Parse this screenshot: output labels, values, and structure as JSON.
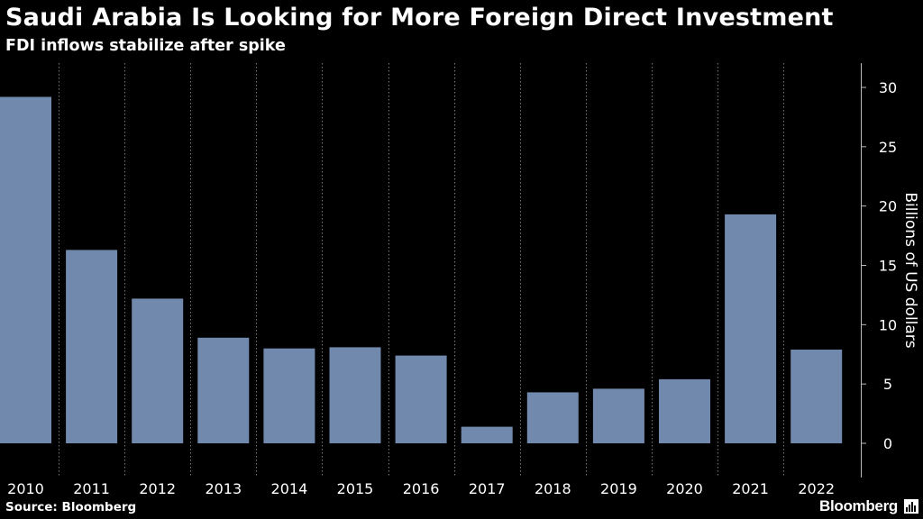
{
  "title": "Saudi Arabia Is Looking for More Foreign Direct Investment",
  "subtitle": "FDI inflows stabilize after spike",
  "source": "Source: Bloomberg",
  "brand": "Bloomberg",
  "colors": {
    "background": "#000000",
    "bar": "#7189ad",
    "text": "#ffffff",
    "grid": "#777777"
  },
  "chart_data": {
    "type": "bar",
    "title": "Saudi Arabia Is Looking for More Foreign Direct Investment",
    "subtitle": "FDI inflows stabilize after spike",
    "xlabel": "",
    "ylabel": "Billions of US dollars",
    "categories": [
      "2010",
      "2011",
      "2012",
      "2013",
      "2014",
      "2015",
      "2016",
      "2017",
      "2018",
      "2019",
      "2020",
      "2021",
      "2022"
    ],
    "values": [
      29.2,
      16.3,
      12.2,
      8.9,
      8.0,
      8.1,
      7.4,
      1.4,
      4.3,
      4.6,
      5.4,
      19.3,
      7.9
    ],
    "ylim": [
      -3,
      32
    ],
    "yticks": [
      0,
      5,
      10,
      15,
      20,
      25,
      30
    ],
    "grid": "vertical dotted",
    "y_axis_side": "right"
  }
}
